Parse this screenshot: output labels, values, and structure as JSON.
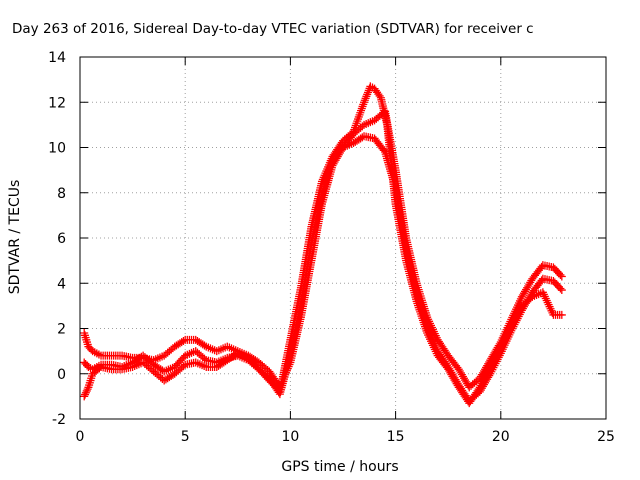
{
  "chart_data": {
    "type": "scatter",
    "title": "Day 263 of 2016, Sidereal Day-to-day VTEC variation (SDTVAR) for receiver c",
    "xlabel": "GPS time / hours",
    "ylabel": "SDTVAR / TECUs",
    "xlim": [
      0,
      25
    ],
    "ylim": [
      -2,
      14
    ],
    "xticks": [
      "0",
      "5",
      "10",
      "15",
      "20",
      "25"
    ],
    "yticks": [
      "-2",
      "0",
      "2",
      "4",
      "6",
      "8",
      "10",
      "12",
      "14"
    ],
    "grid": true,
    "marker": "+",
    "color": "#ff0000",
    "series": [
      {
        "x": [
          0.2,
          0.3,
          0.4,
          0.6,
          0.8,
          1.0,
          1.5,
          2.0,
          2.5,
          3.0,
          3.5,
          4.0,
          4.5,
          5.0,
          5.5,
          6.0,
          6.5,
          7.0,
          7.5,
          8.0,
          8.5,
          9.0,
          9.5,
          10.0,
          10.5,
          11.0,
          11.5,
          12.0,
          12.5,
          13.0,
          13.5,
          14.0,
          14.5,
          15.0,
          15.5,
          16.0,
          16.5,
          17.0,
          17.5,
          18.0,
          18.5,
          19.0,
          19.5,
          20.0,
          20.5,
          21.0,
          21.5,
          22.0,
          22.5,
          22.9
        ],
        "y": [
          1.8,
          1.5,
          1.2,
          1.0,
          0.9,
          0.8,
          0.8,
          0.8,
          0.7,
          0.7,
          0.6,
          0.8,
          1.2,
          1.5,
          1.5,
          1.2,
          1.0,
          1.2,
          1.0,
          0.8,
          0.5,
          0.1,
          -0.6,
          0.5,
          2.5,
          5.0,
          7.5,
          9.2,
          10.0,
          10.6,
          11.0,
          11.2,
          11.6,
          9.0,
          6.0,
          4.0,
          2.5,
          1.5,
          0.8,
          0.2,
          -0.6,
          -0.2,
          0.6,
          1.4,
          2.4,
          3.4,
          4.2,
          4.8,
          4.7,
          4.3
        ]
      },
      {
        "x": [
          0.2,
          0.4,
          0.6,
          0.8,
          1.0,
          1.5,
          2.0,
          2.5,
          3.0,
          3.5,
          4.0,
          4.5,
          5.0,
          5.5,
          6.0,
          6.5,
          7.0,
          7.5,
          8.0,
          8.5,
          9.0,
          9.5,
          10.0,
          10.5,
          11.0,
          11.5,
          12.0,
          12.5,
          13.0,
          13.5,
          14.0,
          14.5,
          15.0,
          15.5,
          16.0,
          16.5,
          17.0,
          17.5,
          18.0,
          18.5,
          19.0,
          19.5,
          20.0,
          20.5,
          21.0,
          21.5,
          22.0,
          22.5,
          22.9
        ],
        "y": [
          0.5,
          0.3,
          0.2,
          0.3,
          0.4,
          0.4,
          0.3,
          0.5,
          0.8,
          0.4,
          0.1,
          0.3,
          0.8,
          1.0,
          0.6,
          0.5,
          0.7,
          0.8,
          0.6,
          0.2,
          -0.2,
          -0.9,
          0.8,
          3.0,
          5.8,
          7.8,
          9.5,
          10.0,
          10.2,
          10.5,
          10.4,
          9.8,
          8.2,
          5.5,
          3.5,
          2.0,
          1.0,
          0.3,
          -0.5,
          -1.2,
          -0.8,
          0.0,
          0.9,
          1.9,
          2.8,
          3.6,
          4.2,
          4.1,
          3.7
        ]
      },
      {
        "x": [
          0.2,
          0.4,
          0.6,
          1.0,
          1.5,
          2.0,
          2.5,
          3.0,
          3.5,
          4.0,
          4.5,
          5.0,
          5.5,
          6.0,
          6.5,
          7.0,
          7.5,
          8.0,
          8.5,
          9.0,
          9.5,
          10.0,
          10.5,
          11.0,
          11.5,
          12.0,
          12.5,
          13.0,
          13.5,
          13.8,
          14.0,
          14.3,
          14.6,
          15.0,
          15.5,
          16.0,
          16.5,
          17.0,
          17.5,
          18.0,
          18.5,
          19.0,
          19.5,
          20.0,
          20.5,
          21.0,
          21.5,
          22.0,
          22.5,
          22.9
        ],
        "y": [
          -1.0,
          -0.6,
          0.0,
          0.3,
          0.2,
          0.2,
          0.3,
          0.5,
          0.1,
          -0.3,
          0.0,
          0.4,
          0.5,
          0.3,
          0.3,
          0.6,
          0.9,
          0.7,
          0.2,
          -0.3,
          -0.8,
          1.5,
          3.8,
          6.5,
          8.5,
          9.6,
          10.3,
          10.7,
          12.0,
          12.7,
          12.6,
          12.2,
          11.0,
          7.5,
          5.0,
          3.2,
          1.8,
          0.8,
          0.2,
          -0.6,
          -1.3,
          -0.6,
          0.4,
          1.2,
          2.2,
          3.0,
          3.4,
          3.6,
          2.6,
          2.6
        ]
      }
    ]
  }
}
